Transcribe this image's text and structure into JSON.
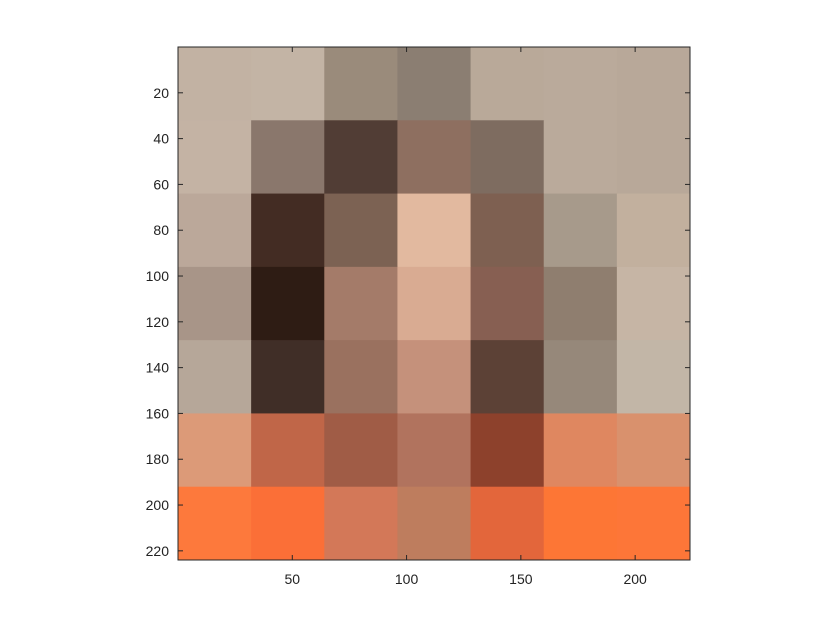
{
  "chart_data": {
    "type": "heatmap",
    "title": "",
    "xlabel": "",
    "ylabel": "",
    "xlim": [
      0,
      224
    ],
    "ylim": [
      224,
      0
    ],
    "cell_size": 32,
    "x_ticks": [
      50,
      100,
      150,
      200
    ],
    "y_ticks": [
      20,
      40,
      60,
      80,
      100,
      120,
      140,
      160,
      180,
      200,
      220
    ],
    "grid": false,
    "cells": [
      [
        "#c2b2a3",
        "#c3b4a5",
        "#9a8b7b",
        "#8b7e72",
        "#b9a999",
        "#baaa9b",
        "#b8a899"
      ],
      [
        "#c4b3a4",
        "#8a776c",
        "#513d35",
        "#8e6f60",
        "#7e6c60",
        "#baaa9b",
        "#b8a899"
      ],
      [
        "#bba89a",
        "#432c23",
        "#7c6253",
        "#e2b99f",
        "#7e6051",
        "#a79a8b",
        "#c2b09e"
      ],
      [
        "#a89588",
        "#2e1c14",
        "#a47b69",
        "#d9ab92",
        "#875f52",
        "#8f7e6f",
        "#c6b5a5"
      ],
      [
        "#b6a799",
        "#402e27",
        "#9a715f",
        "#c5917b",
        "#5c4136",
        "#96887a",
        "#c2b6a7"
      ],
      [
        "#dc9a78",
        "#c06648",
        "#a05c46",
        "#b1735e",
        "#8d412c",
        "#df8760",
        "#d9916d"
      ],
      [
        "#fd793c",
        "#fb6f37",
        "#d37858",
        "#be7d5e",
        "#e3663b",
        "#fd7635",
        "#fd7638"
      ]
    ]
  }
}
